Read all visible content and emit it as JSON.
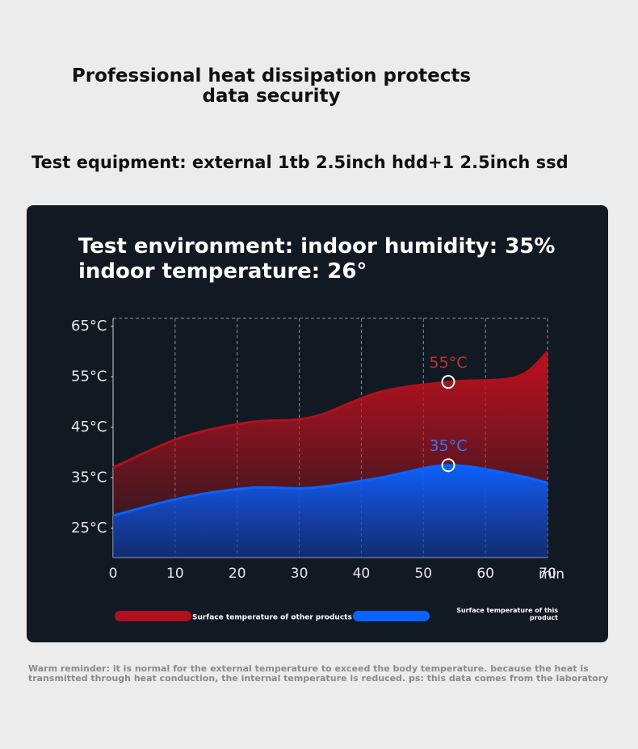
{
  "header": {
    "title": "Professional heat dissipation protects data security",
    "subtitle": "Test equipment: external 1tb 2.5inch hdd+1 2.5inch ssd"
  },
  "chart_data": {
    "type": "area",
    "title": "Test environment: indoor humidity: 35% indoor temperature: 26°",
    "x_label": "min",
    "x": [
      0,
      11,
      22,
      32,
      43,
      54,
      65,
      70
    ],
    "series": [
      {
        "name": "Surface temperature of other products",
        "color": "#b0101e",
        "values": [
          37,
          43,
          46,
          47,
          52,
          54,
          55,
          60
        ]
      },
      {
        "name": "Surface temperature of this product",
        "color": "#0a62ff",
        "values": [
          27.5,
          31,
          33,
          33,
          35,
          37.5,
          35.5,
          34
        ]
      }
    ],
    "annotations": [
      "55°C",
      "35°C"
    ],
    "xlim": [
      0,
      70
    ],
    "xticks": [
      0,
      10,
      20,
      30,
      40,
      50,
      60,
      70
    ],
    "ylim": [
      19.2,
      66.6
    ],
    "yticks": [
      {
        "value": 25,
        "label": "25°C"
      },
      {
        "value": 35,
        "label": "35°C"
      },
      {
        "value": 45,
        "label": "45°C"
      },
      {
        "value": 55,
        "label": "55°C"
      },
      {
        "value": 65,
        "label": "65°C"
      }
    ],
    "grid": true
  },
  "footer": "Warm reminder: it is normal for the external temperature to exceed the body temperature. because the heat is transmitted through heat conduction, the internal temperature is reduced. ps: this data comes from the laboratory"
}
